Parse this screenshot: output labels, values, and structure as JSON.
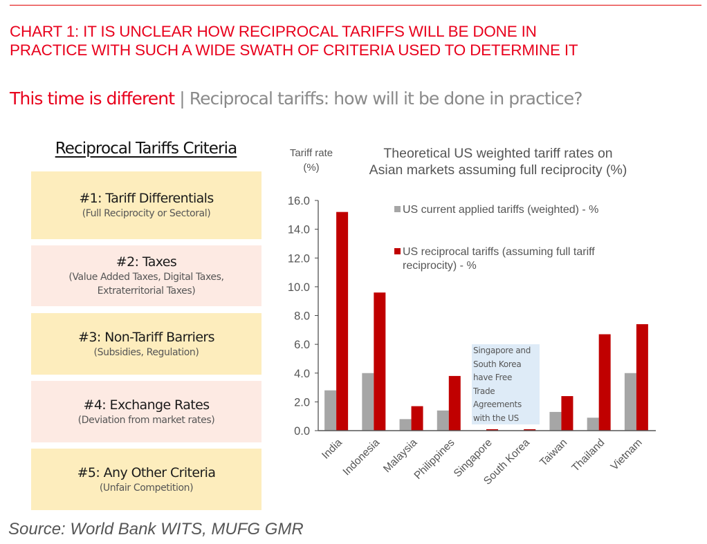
{
  "headline": {
    "line1": "CHART 1: IT IS UNCLEAR HOW RECIPROCAL TARIFFS WILL BE DONE IN",
    "line2": "PRACTICE WITH SUCH A WIDE SWATH OF CRITERIA USED TO DETERMINE IT"
  },
  "subtitle": {
    "highlight": "This time is different",
    "separator": "|",
    "rest": "Reciprocal tariffs: how will it be done in practice?"
  },
  "criteria": {
    "title": "Reciprocal Tariffs Criteria",
    "items": [
      {
        "heading": "#1: Tariff Differentials",
        "detail": [
          "(Full Reciprocity or Sectoral)"
        ]
      },
      {
        "heading": "#2: Taxes",
        "detail": [
          "(Value Added Taxes, Digital Taxes,",
          "Extraterritorial Taxes)"
        ]
      },
      {
        "heading": "#3: Non-Tariff Barriers",
        "detail": [
          "(Subsidies, Regulation)"
        ]
      },
      {
        "heading": "#4: Exchange Rates",
        "detail": [
          "(Deviation from market rates)"
        ]
      },
      {
        "heading": "#5: Any Other Criteria",
        "detail": [
          "(Unfair Competition)"
        ]
      }
    ]
  },
  "source": "Source: World Bank WITS, MUFG GMR",
  "colors": {
    "accent_red": "#e8001c",
    "bar_current": "#a6a6a6",
    "bar_reciprocal": "#c00000",
    "annotation_bg": "#deebf7"
  },
  "chart_data": {
    "type": "bar",
    "title": [
      "Theoretical US weighted tariff rates on",
      "Asian markets assuming full reciprocity (%)"
    ],
    "ylabel": [
      "Tariff rate",
      "(%)"
    ],
    "xlabel": "",
    "ylim": [
      0,
      16
    ],
    "yticks": [
      "0.0",
      "2.0",
      "4.0",
      "6.0",
      "8.0",
      "10.0",
      "12.0",
      "14.0",
      "16.0"
    ],
    "grid": false,
    "legend_position": "top-right",
    "categories": [
      "India",
      "Indonesia",
      "Malaysia",
      "Philippines",
      "Singapore",
      "South Korea",
      "Taiwan",
      "Thailand",
      "Vietnam"
    ],
    "series": [
      {
        "name": "US current applied tariffs (weighted) - %",
        "legend_lines": [
          "US current applied tariffs (weighted) - %"
        ],
        "values": [
          2.8,
          4.0,
          0.8,
          1.4,
          0.0,
          0.0,
          1.3,
          0.9,
          4.0
        ]
      },
      {
        "name": "US reciprocal tariffs (assuming full tariff reciprocity) - %",
        "legend_lines": [
          "US reciprocal tariffs (assuming full tariff",
          "reciprocity) - %"
        ],
        "values": [
          15.2,
          9.6,
          1.7,
          3.8,
          0.1,
          0.1,
          2.4,
          6.7,
          7.4
        ]
      }
    ],
    "annotation": [
      "Singapore and",
      "South Korea",
      "have Free",
      "Trade",
      "Agreements",
      "with the US"
    ]
  }
}
